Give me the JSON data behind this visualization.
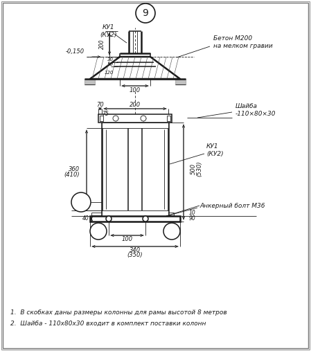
{
  "bg_color": "#ffffff",
  "line_color": "#1a1a1a",
  "title_circle_text": "9",
  "note1": "1.  В скобках даны размеры колонны для рамы высотой 8 метров",
  "note2": "2.  Шайба - 110х80х30 входит в комплект поставки колонн",
  "label_beton": "Бетон М200\nна мелком гравии",
  "label_shaiba": "Шайба\n-110×80×30",
  "label_anker": "Анкерный болт М36",
  "label_ku1_top": "КУ1\n(КУ2)",
  "label_ku1_bot": "КУ1\n(КУ2)",
  "label_minus0150": "-0,150"
}
